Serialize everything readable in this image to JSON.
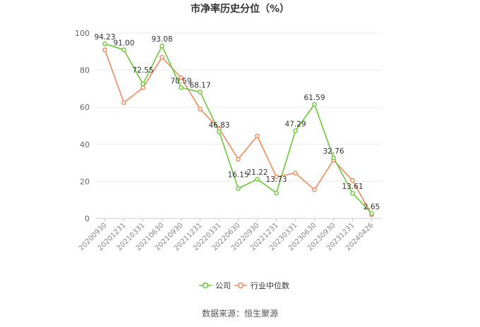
{
  "chart_data": {
    "type": "line",
    "title": "市净率历史分位（%）",
    "xlabel": "",
    "ylabel": "",
    "ylim": [
      0,
      100
    ],
    "yticks": [
      0,
      20,
      40,
      60,
      80,
      100
    ],
    "grid": "horizontal",
    "legend_position": "bottom",
    "categories": [
      "20200930",
      "20201231",
      "20210331",
      "20210630",
      "20210930",
      "20211231",
      "20220331",
      "20220630",
      "20220930",
      "20221231",
      "20230331",
      "20230630",
      "20230930",
      "20231231",
      "20240426"
    ],
    "series": [
      {
        "name": "公司",
        "color": "#6dc63b",
        "values": [
          94.23,
          91.0,
          72.55,
          93.08,
          70.59,
          68.17,
          46.83,
          16.15,
          21.22,
          13.73,
          47.29,
          61.59,
          32.76,
          13.61,
          2.65
        ],
        "labels": [
          "94.23",
          "91.00",
          "72.55",
          "93.08",
          "70.59",
          "68.17",
          "46.83",
          "16.15",
          "21.22",
          "13.73",
          "47.29",
          "61.59",
          "32.76",
          "13.61",
          "2.65"
        ]
      },
      {
        "name": "行业中位数",
        "color": "#f08a5d",
        "values": [
          91.0,
          62.5,
          70.5,
          87.0,
          76.0,
          59.0,
          48.5,
          32.0,
          44.5,
          22.5,
          24.5,
          15.5,
          31.5,
          20.5,
          2.0
        ]
      }
    ],
    "source": "数据来源：恒生聚源"
  }
}
